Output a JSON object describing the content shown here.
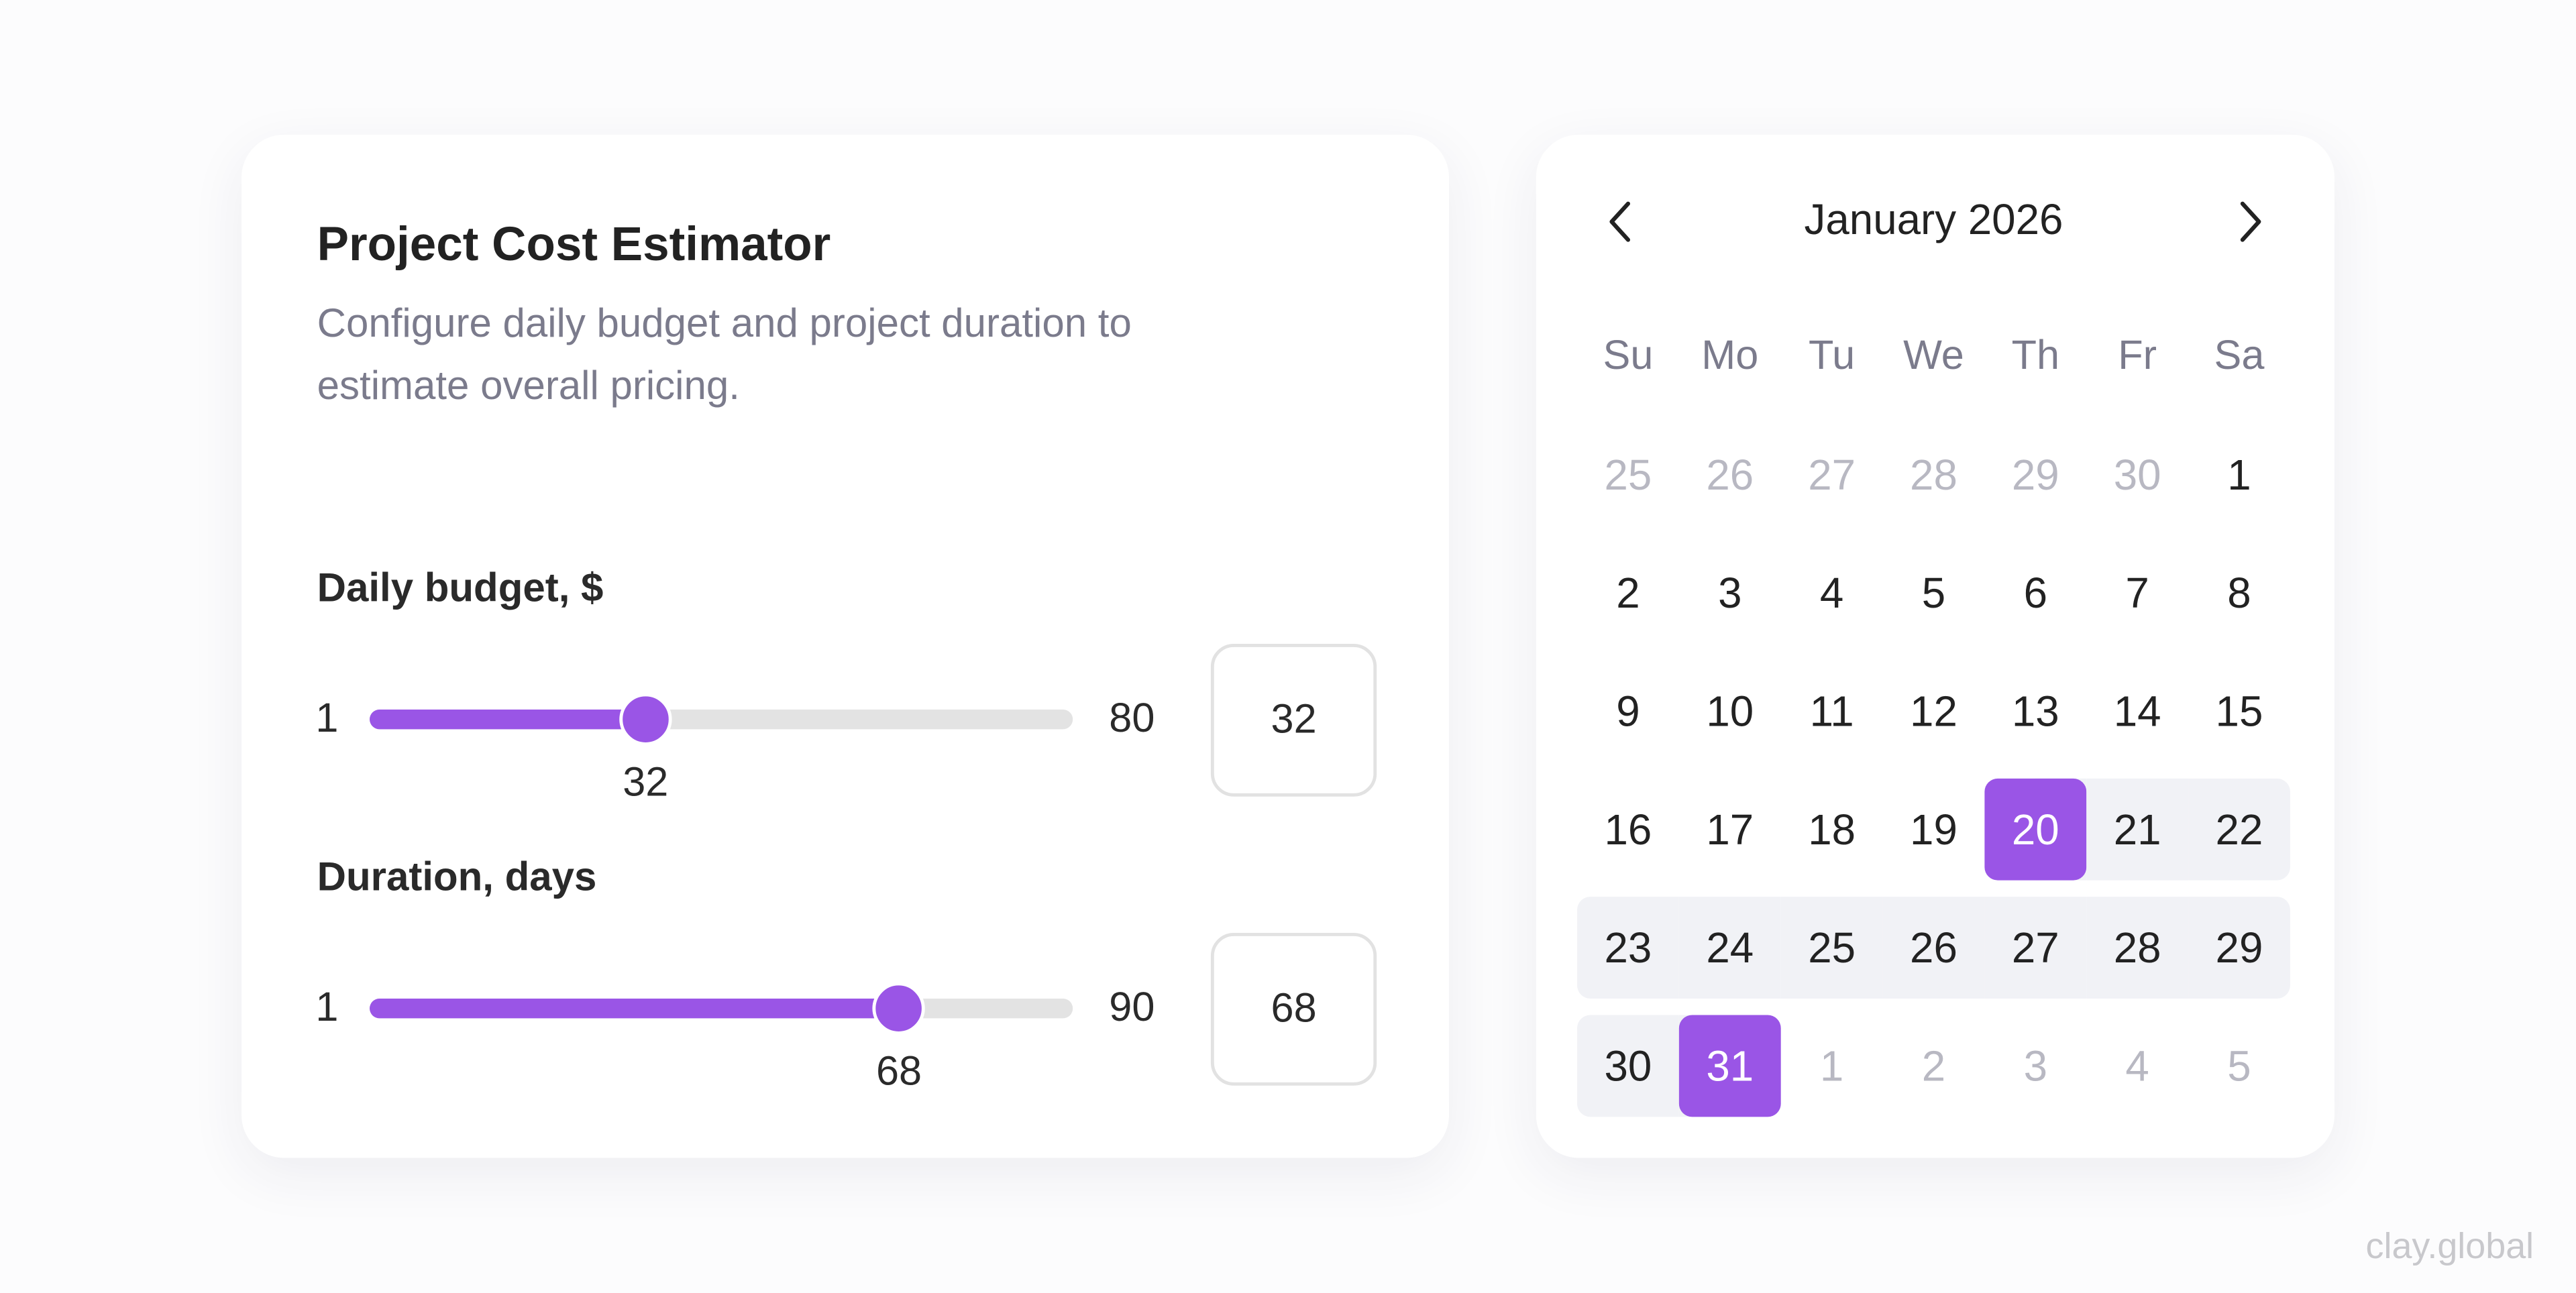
{
  "estimator": {
    "title": "Project Cost Estimator",
    "subtitle": "Configure daily budget and project duration to estimate overall pricing.",
    "sliders": [
      {
        "label": "Daily budget, $",
        "min": 1,
        "max": 80,
        "value": 32
      },
      {
        "label": "Duration, days",
        "min": 1,
        "max": 90,
        "value": 68
      }
    ]
  },
  "calendar": {
    "title": "January 2026",
    "weekdays": [
      "Su",
      "Mo",
      "Tu",
      "We",
      "Th",
      "Fr",
      "Sa"
    ],
    "weeks": [
      [
        {
          "day": 25,
          "state": "outside"
        },
        {
          "day": 26,
          "state": "outside"
        },
        {
          "day": 27,
          "state": "outside"
        },
        {
          "day": 28,
          "state": "outside"
        },
        {
          "day": 29,
          "state": "outside"
        },
        {
          "day": 30,
          "state": "outside"
        },
        {
          "day": 1,
          "state": "normal"
        }
      ],
      [
        {
          "day": 2,
          "state": "normal"
        },
        {
          "day": 3,
          "state": "normal"
        },
        {
          "day": 4,
          "state": "normal"
        },
        {
          "day": 5,
          "state": "normal"
        },
        {
          "day": 6,
          "state": "normal"
        },
        {
          "day": 7,
          "state": "normal"
        },
        {
          "day": 8,
          "state": "normal"
        }
      ],
      [
        {
          "day": 9,
          "state": "normal"
        },
        {
          "day": 10,
          "state": "normal"
        },
        {
          "day": 11,
          "state": "normal"
        },
        {
          "day": 12,
          "state": "normal"
        },
        {
          "day": 13,
          "state": "normal"
        },
        {
          "day": 14,
          "state": "normal"
        },
        {
          "day": 15,
          "state": "normal"
        }
      ],
      [
        {
          "day": 16,
          "state": "normal"
        },
        {
          "day": 17,
          "state": "normal"
        },
        {
          "day": 18,
          "state": "normal"
        },
        {
          "day": 19,
          "state": "normal"
        },
        {
          "day": 20,
          "state": "selected"
        },
        {
          "day": 21,
          "state": "range"
        },
        {
          "day": 22,
          "state": "range"
        }
      ],
      [
        {
          "day": 23,
          "state": "range"
        },
        {
          "day": 24,
          "state": "range"
        },
        {
          "day": 25,
          "state": "range"
        },
        {
          "day": 26,
          "state": "range"
        },
        {
          "day": 27,
          "state": "range"
        },
        {
          "day": 28,
          "state": "range"
        },
        {
          "day": 29,
          "state": "range"
        }
      ],
      [
        {
          "day": 30,
          "state": "range"
        },
        {
          "day": 31,
          "state": "selected"
        },
        {
          "day": 1,
          "state": "outside"
        },
        {
          "day": 2,
          "state": "outside"
        },
        {
          "day": 3,
          "state": "outside"
        },
        {
          "day": 4,
          "state": "outside"
        },
        {
          "day": 5,
          "state": "outside"
        }
      ]
    ]
  },
  "watermark": "clay.global"
}
